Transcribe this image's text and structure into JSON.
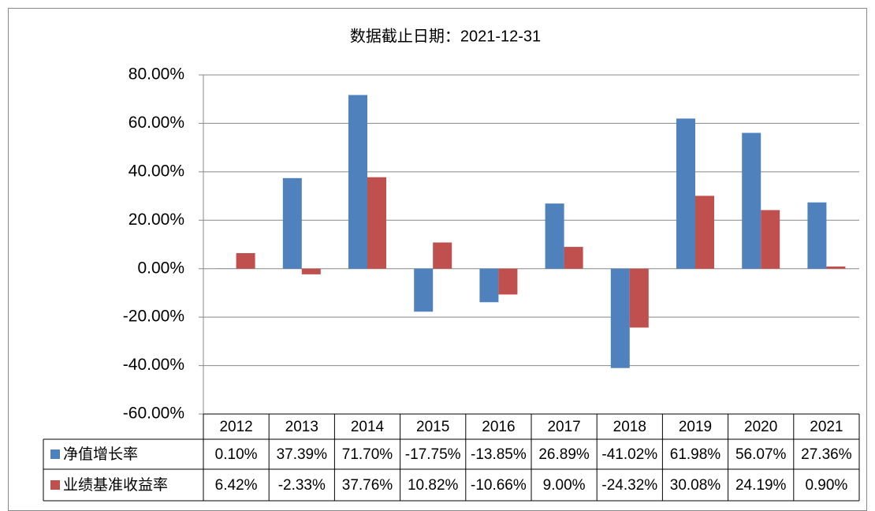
{
  "chart_data": {
    "type": "bar",
    "title": "数据截止日期：2021-12-31",
    "categories": [
      "2012",
      "2013",
      "2014",
      "2015",
      "2016",
      "2017",
      "2018",
      "2019",
      "2020",
      "2021"
    ],
    "series": [
      {
        "name": "净值增长率",
        "color": "#4f81bd",
        "values": [
          0.1,
          37.39,
          71.7,
          -17.75,
          -13.85,
          26.89,
          -41.02,
          61.98,
          56.07,
          27.36
        ],
        "value_labels": [
          "0.10%",
          "37.39%",
          "71.70%",
          "-17.75%",
          "-13.85%",
          "26.89%",
          "-41.02%",
          "61.98%",
          "56.07%",
          "27.36%"
        ]
      },
      {
        "name": "业绩基准收益率",
        "color": "#c0504d",
        "values": [
          6.42,
          -2.33,
          37.76,
          10.82,
          -10.66,
          9.0,
          -24.32,
          30.08,
          24.19,
          0.9
        ],
        "value_labels": [
          "6.42%",
          "-2.33%",
          "37.76%",
          "10.82%",
          "-10.66%",
          "9.00%",
          "-24.32%",
          "30.08%",
          "24.19%",
          "0.90%"
        ]
      }
    ],
    "ylim": [
      -60,
      80
    ],
    "yticks": [
      {
        "value": -60,
        "label": "-60.00%"
      },
      {
        "value": -40,
        "label": "-40.00%"
      },
      {
        "value": -20,
        "label": "-20.00%"
      },
      {
        "value": 0,
        "label": "0.00%"
      },
      {
        "value": 20,
        "label": "20.00%"
      },
      {
        "value": 40,
        "label": "40.00%"
      },
      {
        "value": 60,
        "label": "60.00%"
      },
      {
        "value": 80,
        "label": "80.00%"
      }
    ],
    "grid": true
  }
}
